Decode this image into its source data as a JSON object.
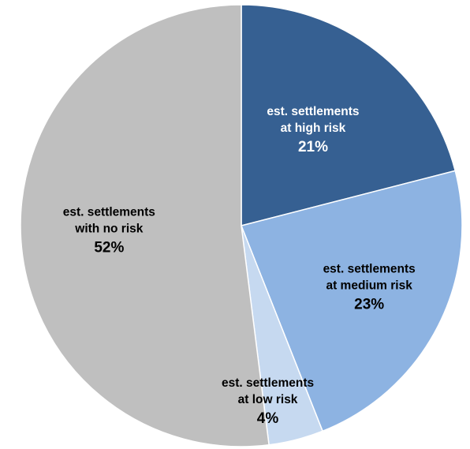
{
  "chart_data": {
    "type": "pie",
    "title": "",
    "slices": [
      {
        "label_lines": [
          "est. settlements",
          "at high risk"
        ],
        "value": 21,
        "value_label": "21%",
        "color": "#366092",
        "text_color": "#ffffff"
      },
      {
        "label_lines": [
          "est. settlements",
          "at medium risk"
        ],
        "value": 23,
        "value_label": "23%",
        "color": "#8db3e2",
        "text_color": "#000000"
      },
      {
        "label_lines": [
          "est. settlements",
          "at low risk"
        ],
        "value": 4,
        "value_label": "4%",
        "color": "#c6d9f0",
        "text_color": "#000000"
      },
      {
        "label_lines": [
          "est. settlements",
          "with no risk"
        ],
        "value": 52,
        "value_label": "52%",
        "color": "#bfbfbf",
        "text_color": "#000000"
      }
    ],
    "start_angle_deg": 0,
    "direction": "clockwise",
    "legend": "none",
    "labels_inside": true
  }
}
